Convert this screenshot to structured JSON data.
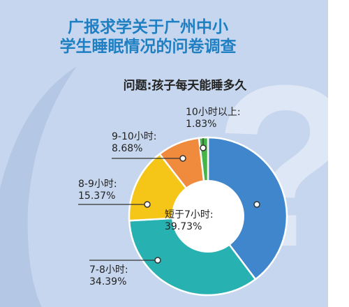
{
  "headline": {
    "line1": "广报求学关于广州中小",
    "line2": "学生睡眠情况的问卷调查"
  },
  "decor": {
    "question_glyph": "?"
  },
  "chart_data": {
    "type": "pie",
    "style": "donut",
    "title": "问题:孩子每天能睡多久",
    "slices": [
      {
        "name": "短于7小时:",
        "value_label": "39.73%",
        "value": 39.73,
        "color": "#3f86cc"
      },
      {
        "name": "7-8小时:",
        "value_label": "34.39%",
        "value": 34.39,
        "color": "#27b2b1"
      },
      {
        "name": "8-9小时:",
        "value_label": "15.37%",
        "value": 15.37,
        "color": "#f5c518"
      },
      {
        "name": "9-10小时:",
        "value_label": "8.68%",
        "value": 8.68,
        "color": "#f08a3c"
      },
      {
        "name": "10小时以上:",
        "value_label": "1.83%",
        "value": 1.83,
        "color": "#46b548"
      }
    ]
  },
  "colors": {
    "background": "#c6d6ee",
    "swirl": "#b4c8e6",
    "headline": "#1f7fc3",
    "title": "#222222",
    "label_text": "#222222",
    "leader_line": "#333333"
  }
}
